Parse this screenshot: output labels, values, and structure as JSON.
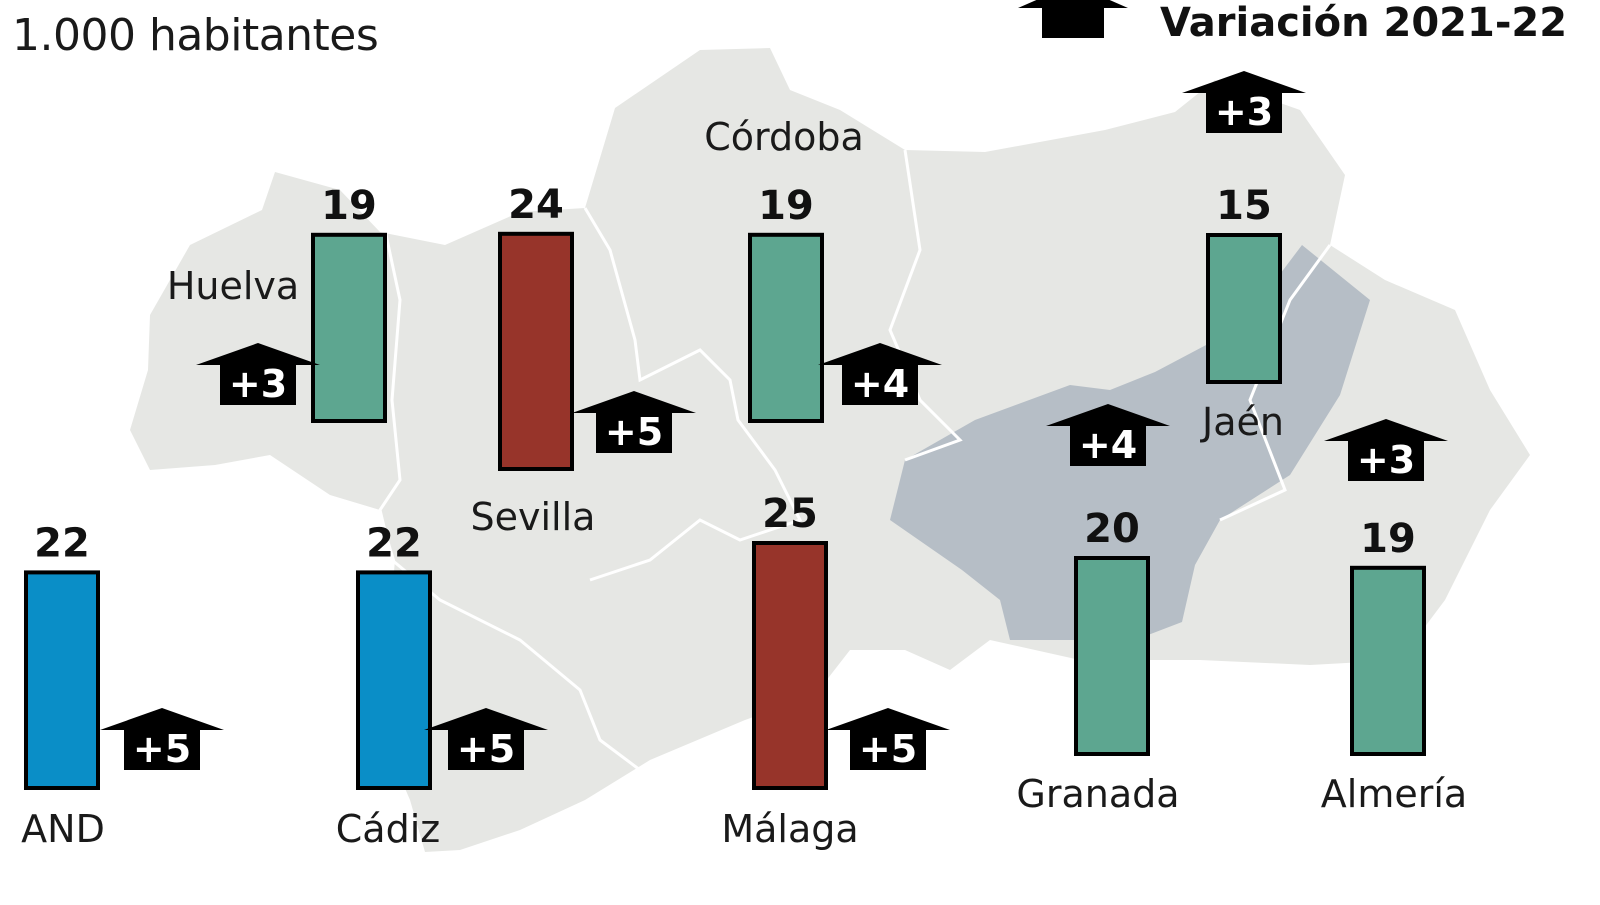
{
  "unit_label": "1.000 habitantes",
  "legend": {
    "label": "Variación 2021-22",
    "icon": "up-arrow-icon"
  },
  "colors": {
    "map_fill": "#e6e7e4",
    "map_highlight": "#b6bec6",
    "bar_average": "#0a8ec7",
    "bar_above": "#97342a",
    "bar_below": "#5da690",
    "arrow": "#000000"
  },
  "chart_data": {
    "type": "bar",
    "title": "",
    "categories": [
      "AND",
      "Huelva",
      "Sevilla",
      "Cádiz",
      "Córdoba",
      "Málaga",
      "Jaén",
      "Granada",
      "Almería"
    ],
    "values": [
      22,
      19,
      24,
      22,
      19,
      25,
      15,
      20,
      19
    ],
    "variation": [
      "+5",
      "+3",
      "+5",
      "+5",
      "+4",
      "+5",
      "+3",
      "+4",
      "+3"
    ],
    "ylabel": "1.000 habitantes",
    "xlabel": "",
    "ylim": [
      0,
      25
    ],
    "grid": false,
    "legend": "top-right"
  }
}
